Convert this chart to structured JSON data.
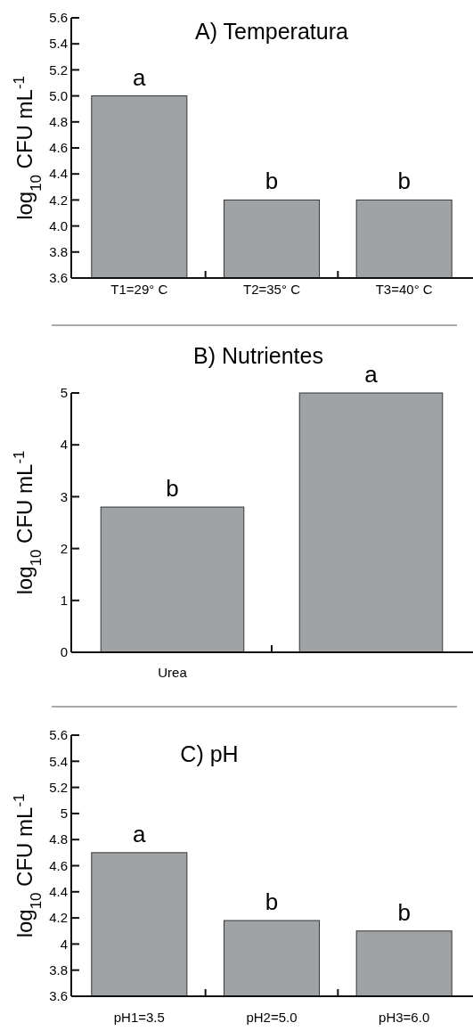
{
  "chart_data": [
    {
      "type": "bar",
      "title": "A) Temperatura",
      "ylabel": "log$_{10}$ CFU mL$^{-1}$",
      "categories": [
        "T1=29° C",
        "T2=35° C",
        "T3=40° C"
      ],
      "values": [
        5.0,
        4.2,
        4.2
      ],
      "value_labels": [
        "a",
        "b",
        "b"
      ],
      "color": "#a0a3a6",
      "ylim": [
        3.6,
        5.6
      ],
      "yticks": [
        {
          "value": 3.6,
          "label": "3.6"
        },
        {
          "value": 3.8,
          "label": "3.8"
        },
        {
          "value": 4,
          "label": "4.0"
        },
        {
          "value": 4.2,
          "label": "4.2"
        },
        {
          "value": 4.4,
          "label": "4.4"
        },
        {
          "value": 4.6,
          "label": "4.6"
        },
        {
          "value": 4.8,
          "label": "4.8"
        },
        {
          "value": 5,
          "label": "5.0"
        },
        {
          "value": 5.2,
          "label": "5.2"
        },
        {
          "value": 5.4,
          "label": "5.4"
        },
        {
          "value": 5.6,
          "label": "5.6"
        }
      ]
    },
    {
      "type": "bar",
      "title": "B) Nutrientes",
      "ylabel": "log$_{10}$ CFU mL$^{-1}$",
      "categories": [
        "Urea",
        null
      ],
      "values": [
        2.8,
        5.0
      ],
      "value_labels": [
        "b",
        "a"
      ],
      "color": "#a0a3a6",
      "ylim": [
        0,
        5
      ],
      "yticks": [
        0,
        1,
        2,
        3,
        4,
        5
      ]
    },
    {
      "type": "bar",
      "title": "C) pH",
      "ylabel": "log$_{10}$ CFU mL$^{-1}$",
      "categories": [
        "pH1=3.5",
        "pH2=5.0",
        "pH3=6.0"
      ],
      "values": [
        4.7,
        4.18,
        4.1
      ],
      "value_labels": [
        "a",
        "b",
        "b"
      ],
      "color": "#a0a3a6",
      "ylim": [
        3.6,
        5.6
      ],
      "yticks": [
        3.6,
        3.8,
        4,
        4.2,
        4.4,
        4.6,
        4.8,
        5,
        5.2,
        5.4,
        5.6
      ]
    }
  ]
}
